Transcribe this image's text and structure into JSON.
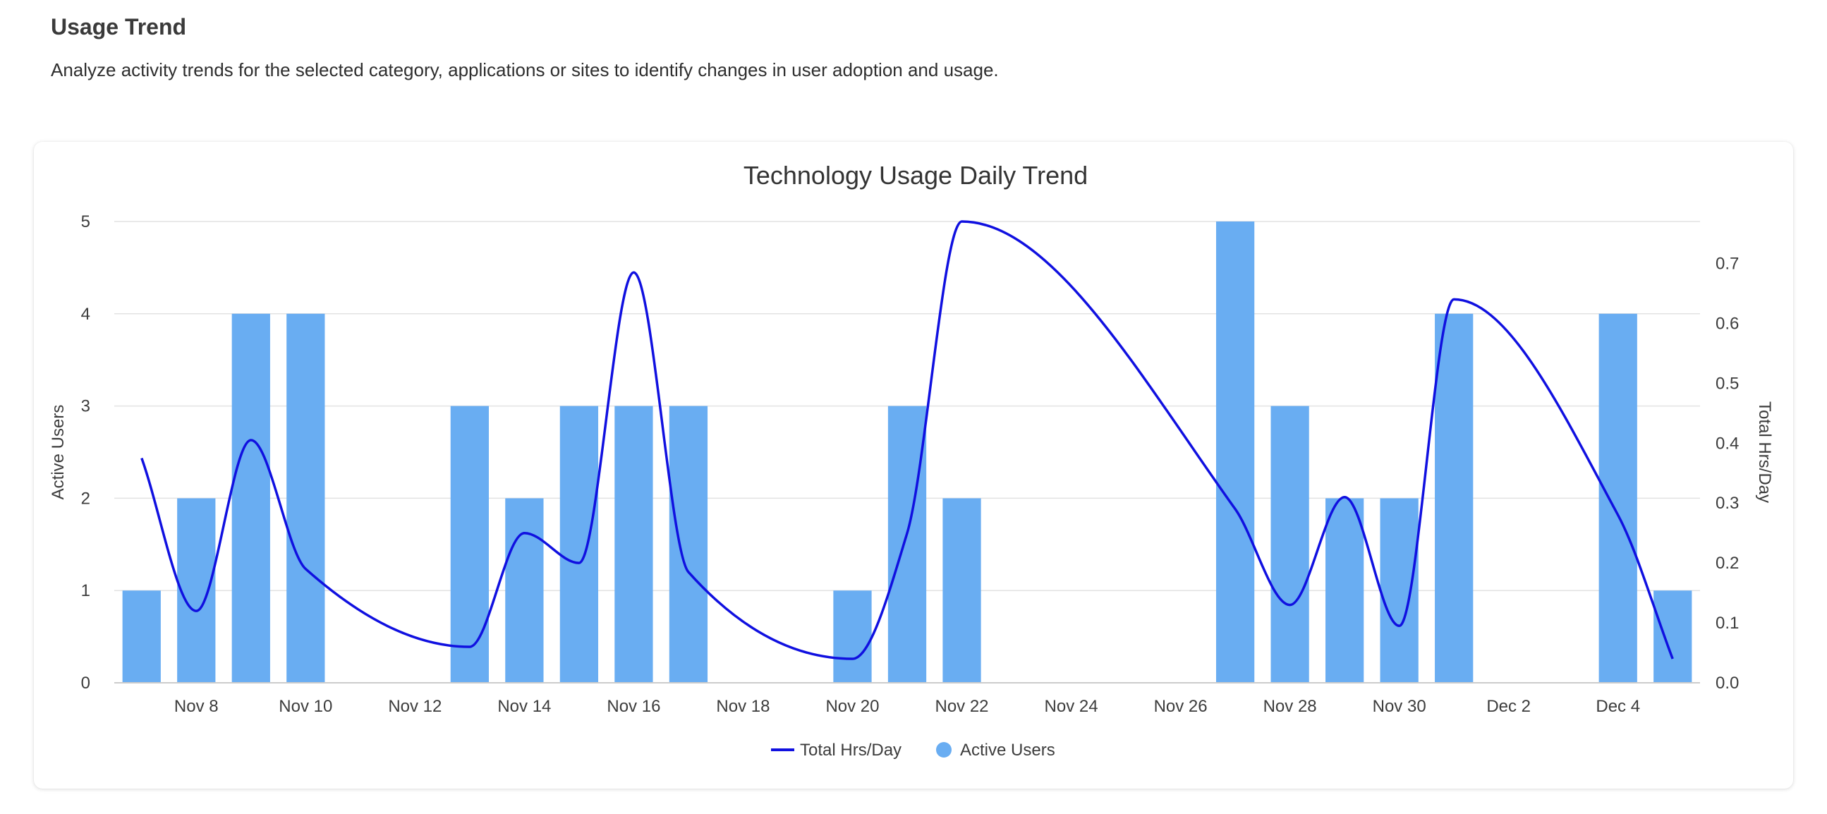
{
  "section": {
    "title": "Usage Trend",
    "description": "Analyze activity trends for the selected category, applications or sites to identify changes in user adoption and usage."
  },
  "chart_data": {
    "type": "bar",
    "title": "Technology Usage Daily Trend",
    "y_left_label": "Active Users",
    "y_right_label": "Total Hrs/Day",
    "y_left_range": [
      0,
      5
    ],
    "y_left_ticks": [
      "0",
      "1",
      "2",
      "3",
      "4",
      "5"
    ],
    "y_right_range": [
      0,
      0.77
    ],
    "y_right_ticks": [
      "0.0",
      "0.1",
      "0.2",
      "0.3",
      "0.4",
      "0.5",
      "0.6",
      "0.7"
    ],
    "x_tick_labels": [
      "Nov 8",
      "Nov 10",
      "Nov 12",
      "Nov 14",
      "Nov 16",
      "Nov 18",
      "Nov 20",
      "Nov 22",
      "Nov 24",
      "Nov 26",
      "Nov 28",
      "Nov 30",
      "Dec 2",
      "Dec 4"
    ],
    "categories": [
      "Nov 7",
      "Nov 8",
      "Nov 9",
      "Nov 10",
      "Nov 11",
      "Nov 12",
      "Nov 13",
      "Nov 14",
      "Nov 15",
      "Nov 16",
      "Nov 17",
      "Nov 18",
      "Nov 19",
      "Nov 20",
      "Nov 21",
      "Nov 22",
      "Nov 23",
      "Nov 24",
      "Nov 25",
      "Nov 26",
      "Nov 27",
      "Nov 28",
      "Nov 29",
      "Nov 30",
      "Dec 1",
      "Dec 2",
      "Dec 3",
      "Dec 4",
      "Dec 5"
    ],
    "grid": true,
    "legend_position": "bottom",
    "series": [
      {
        "name": "Total Hrs/Day",
        "type": "line",
        "axis": "right",
        "color": "#1010e0",
        "points": [
          {
            "x": "Nov 7",
            "y": 0.375
          },
          {
            "x": "Nov 8",
            "y": 0.12
          },
          {
            "x": "Nov 9",
            "y": 0.405
          },
          {
            "x": "Nov 10",
            "y": 0.19
          },
          {
            "x": "Nov 13",
            "y": 0.06
          },
          {
            "x": "Nov 14",
            "y": 0.25
          },
          {
            "x": "Nov 15",
            "y": 0.2
          },
          {
            "x": "Nov 16",
            "y": 0.685
          },
          {
            "x": "Nov 17",
            "y": 0.185
          },
          {
            "x": "Nov 20",
            "y": 0.04
          },
          {
            "x": "Nov 21",
            "y": 0.25
          },
          {
            "x": "Nov 22",
            "y": 0.77
          },
          {
            "x": "Nov 27",
            "y": 0.29
          },
          {
            "x": "Nov 28",
            "y": 0.13
          },
          {
            "x": "Nov 29",
            "y": 0.31
          },
          {
            "x": "Nov 30",
            "y": 0.095
          },
          {
            "x": "Dec 1",
            "y": 0.64
          },
          {
            "x": "Dec 4",
            "y": 0.28
          },
          {
            "x": "Dec 5",
            "y": 0.04
          }
        ]
      },
      {
        "name": "Active Users",
        "type": "bar",
        "axis": "left",
        "color": "#69adf2",
        "points": [
          {
            "x": "Nov 7",
            "y": 1
          },
          {
            "x": "Nov 8",
            "y": 2
          },
          {
            "x": "Nov 9",
            "y": 4
          },
          {
            "x": "Nov 10",
            "y": 4
          },
          {
            "x": "Nov 13",
            "y": 3
          },
          {
            "x": "Nov 14",
            "y": 2
          },
          {
            "x": "Nov 15",
            "y": 3
          },
          {
            "x": "Nov 16",
            "y": 3
          },
          {
            "x": "Nov 17",
            "y": 3
          },
          {
            "x": "Nov 20",
            "y": 1
          },
          {
            "x": "Nov 21",
            "y": 3
          },
          {
            "x": "Nov 22",
            "y": 2
          },
          {
            "x": "Nov 27",
            "y": 5
          },
          {
            "x": "Nov 28",
            "y": 3
          },
          {
            "x": "Nov 29",
            "y": 2
          },
          {
            "x": "Nov 30",
            "y": 2
          },
          {
            "x": "Dec 1",
            "y": 4
          },
          {
            "x": "Dec 4",
            "y": 4
          },
          {
            "x": "Dec 5",
            "y": 1
          }
        ]
      }
    ],
    "colors": {
      "left_axis_label": "#3b9be6",
      "right_axis_label": "#1010d8",
      "grid": "#e2e2e2",
      "axis_line": "#cccccc"
    }
  }
}
